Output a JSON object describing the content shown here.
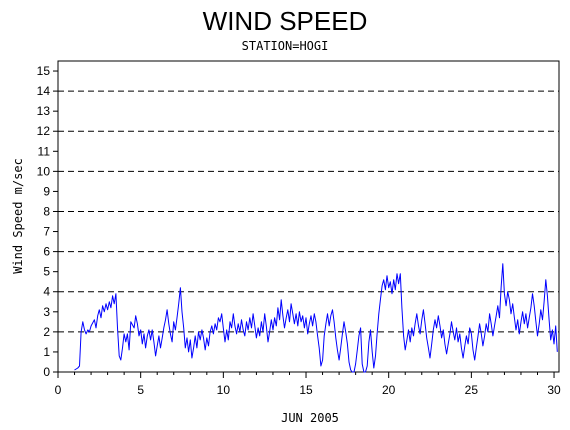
{
  "chart_data": {
    "type": "line",
    "title": "WIND SPEED",
    "subtitle": "STATION=HOGI",
    "xlabel": "JUN 2005",
    "ylabel": "Wind Speed m/sec",
    "xlim": [
      0,
      30.3
    ],
    "ylim": [
      0,
      15.5
    ],
    "x_ticks": [
      0,
      5,
      10,
      15,
      20,
      25,
      30
    ],
    "y_ticks": [
      0,
      1,
      2,
      3,
      4,
      5,
      6,
      7,
      8,
      9,
      10,
      11,
      12,
      13,
      14,
      15
    ],
    "grid_y": [
      2,
      4,
      6,
      8,
      10,
      12,
      14
    ],
    "grid_style": "dashed horizontal",
    "series": [
      {
        "color": "#0000ff",
        "points": [
          [
            1.0,
            0.1
          ],
          [
            1.2,
            0.2
          ],
          [
            1.3,
            0.3
          ],
          [
            1.4,
            2.0
          ],
          [
            1.5,
            2.5
          ],
          [
            1.6,
            2.1
          ],
          [
            1.7,
            1.9
          ],
          [
            1.8,
            2.1
          ],
          [
            1.9,
            2.0
          ],
          [
            2.0,
            2.3
          ],
          [
            2.2,
            2.6
          ],
          [
            2.3,
            2.2
          ],
          [
            2.4,
            2.8
          ],
          [
            2.5,
            3.1
          ],
          [
            2.6,
            2.7
          ],
          [
            2.7,
            3.3
          ],
          [
            2.8,
            3.0
          ],
          [
            2.9,
            3.4
          ],
          [
            3.0,
            3.1
          ],
          [
            3.1,
            3.5
          ],
          [
            3.2,
            3.2
          ],
          [
            3.3,
            3.8
          ],
          [
            3.4,
            3.4
          ],
          [
            3.5,
            3.9
          ],
          [
            3.6,
            2.2
          ],
          [
            3.7,
            0.8
          ],
          [
            3.8,
            0.6
          ],
          [
            3.9,
            1.2
          ],
          [
            4.0,
            1.9
          ],
          [
            4.1,
            1.5
          ],
          [
            4.2,
            1.9
          ],
          [
            4.3,
            1.1
          ],
          [
            4.4,
            2.5
          ],
          [
            4.6,
            2.2
          ],
          [
            4.7,
            2.8
          ],
          [
            4.8,
            2.4
          ],
          [
            4.9,
            1.8
          ],
          [
            5.0,
            2.1
          ],
          [
            5.1,
            1.4
          ],
          [
            5.2,
            1.9
          ],
          [
            5.3,
            1.2
          ],
          [
            5.4,
            1.8
          ],
          [
            5.5,
            2.1
          ],
          [
            5.6,
            1.6
          ],
          [
            5.7,
            2.1
          ],
          [
            5.8,
            1.5
          ],
          [
            5.9,
            0.8
          ],
          [
            6.0,
            1.3
          ],
          [
            6.1,
            1.8
          ],
          [
            6.2,
            1.2
          ],
          [
            6.3,
            1.7
          ],
          [
            6.4,
            2.2
          ],
          [
            6.5,
            2.6
          ],
          [
            6.6,
            3.1
          ],
          [
            6.7,
            2.4
          ],
          [
            6.8,
            1.9
          ],
          [
            6.9,
            1.5
          ],
          [
            7.0,
            2.5
          ],
          [
            7.1,
            2.1
          ],
          [
            7.2,
            2.7
          ],
          [
            7.3,
            3.4
          ],
          [
            7.4,
            4.2
          ],
          [
            7.5,
            3.0
          ],
          [
            7.6,
            2.2
          ],
          [
            7.7,
            1.2
          ],
          [
            7.8,
            1.7
          ],
          [
            7.9,
            1.0
          ],
          [
            8.0,
            1.6
          ],
          [
            8.1,
            0.7
          ],
          [
            8.2,
            1.2
          ],
          [
            8.3,
            1.8
          ],
          [
            8.4,
            1.2
          ],
          [
            8.5,
            2.0
          ],
          [
            8.6,
            1.6
          ],
          [
            8.7,
            2.1
          ],
          [
            8.8,
            1.7
          ],
          [
            8.9,
            1.1
          ],
          [
            9.0,
            1.7
          ],
          [
            9.1,
            1.3
          ],
          [
            9.2,
            2.0
          ],
          [
            9.3,
            2.3
          ],
          [
            9.4,
            1.9
          ],
          [
            9.5,
            2.4
          ],
          [
            9.6,
            2.1
          ],
          [
            9.7,
            2.7
          ],
          [
            9.8,
            2.5
          ],
          [
            9.9,
            2.9
          ],
          [
            10.0,
            2.2
          ],
          [
            10.1,
            1.5
          ],
          [
            10.2,
            2.1
          ],
          [
            10.3,
            1.6
          ],
          [
            10.4,
            2.5
          ],
          [
            10.5,
            2.2
          ],
          [
            10.6,
            2.9
          ],
          [
            10.7,
            2.3
          ],
          [
            10.8,
            1.9
          ],
          [
            10.9,
            2.4
          ],
          [
            11.0,
            2.0
          ],
          [
            11.1,
            2.6
          ],
          [
            11.2,
            2.1
          ],
          [
            11.3,
            1.8
          ],
          [
            11.4,
            2.5
          ],
          [
            11.5,
            2.1
          ],
          [
            11.6,
            2.7
          ],
          [
            11.7,
            2.2
          ],
          [
            11.8,
            2.9
          ],
          [
            11.9,
            2.3
          ],
          [
            12.0,
            1.7
          ],
          [
            12.1,
            2.2
          ],
          [
            12.2,
            1.8
          ],
          [
            12.3,
            2.5
          ],
          [
            12.4,
            2.0
          ],
          [
            12.5,
            2.9
          ],
          [
            12.6,
            2.3
          ],
          [
            12.7,
            1.5
          ],
          [
            12.8,
            2.0
          ],
          [
            12.9,
            2.6
          ],
          [
            13.0,
            2.1
          ],
          [
            13.1,
            2.7
          ],
          [
            13.2,
            2.3
          ],
          [
            13.3,
            3.2
          ],
          [
            13.4,
            2.6
          ],
          [
            13.5,
            3.6
          ],
          [
            13.6,
            2.8
          ],
          [
            13.7,
            2.2
          ],
          [
            13.8,
            2.7
          ],
          [
            13.9,
            3.1
          ],
          [
            14.0,
            2.5
          ],
          [
            14.1,
            3.4
          ],
          [
            14.2,
            2.9
          ],
          [
            14.3,
            2.4
          ],
          [
            14.4,
            2.9
          ],
          [
            14.5,
            2.3
          ],
          [
            14.6,
            3.0
          ],
          [
            14.7,
            2.5
          ],
          [
            14.8,
            2.8
          ],
          [
            14.9,
            2.2
          ],
          [
            15.0,
            2.7
          ],
          [
            15.1,
            1.9
          ],
          [
            15.2,
            2.4
          ],
          [
            15.3,
            2.8
          ],
          [
            15.4,
            2.3
          ],
          [
            15.5,
            2.9
          ],
          [
            15.6,
            2.5
          ],
          [
            15.7,
            1.8
          ],
          [
            15.8,
            1.2
          ],
          [
            15.9,
            0.3
          ],
          [
            16.0,
            0.6
          ],
          [
            16.1,
            1.8
          ],
          [
            16.2,
            2.4
          ],
          [
            16.3,
            2.9
          ],
          [
            16.4,
            2.3
          ],
          [
            16.5,
            2.8
          ],
          [
            16.6,
            3.1
          ],
          [
            16.7,
            2.5
          ],
          [
            16.8,
            1.7
          ],
          [
            16.9,
            1.1
          ],
          [
            17.0,
            0.6
          ],
          [
            17.1,
            1.2
          ],
          [
            17.2,
            1.9
          ],
          [
            17.3,
            2.5
          ],
          [
            17.4,
            2.0
          ],
          [
            17.5,
            1.4
          ],
          [
            17.6,
            0.5
          ],
          [
            17.7,
            0.1
          ],
          [
            17.8,
            0.0
          ],
          [
            17.9,
            0.0
          ],
          [
            18.0,
            0.4
          ],
          [
            18.1,
            1.1
          ],
          [
            18.2,
            1.8
          ],
          [
            18.3,
            2.2
          ],
          [
            18.4,
            0.4
          ],
          [
            18.5,
            0.0
          ],
          [
            18.6,
            0.0
          ],
          [
            18.7,
            0.3
          ],
          [
            18.8,
            1.5
          ],
          [
            18.9,
            2.1
          ],
          [
            19.0,
            1.0
          ],
          [
            19.1,
            0.2
          ],
          [
            19.2,
            0.8
          ],
          [
            19.3,
            1.9
          ],
          [
            19.4,
            2.9
          ],
          [
            19.5,
            3.6
          ],
          [
            19.6,
            4.3
          ],
          [
            19.7,
            4.6
          ],
          [
            19.8,
            4.1
          ],
          [
            19.9,
            4.8
          ],
          [
            20.0,
            4.2
          ],
          [
            20.1,
            4.5
          ],
          [
            20.2,
            3.9
          ],
          [
            20.3,
            4.6
          ],
          [
            20.4,
            4.1
          ],
          [
            20.5,
            4.9
          ],
          [
            20.6,
            4.4
          ],
          [
            20.7,
            4.9
          ],
          [
            20.8,
            3.2
          ],
          [
            20.9,
            1.8
          ],
          [
            21.0,
            1.1
          ],
          [
            21.1,
            1.6
          ],
          [
            21.2,
            2.1
          ],
          [
            21.3,
            1.5
          ],
          [
            21.4,
            2.2
          ],
          [
            21.5,
            1.8
          ],
          [
            21.6,
            2.4
          ],
          [
            21.7,
            2.9
          ],
          [
            21.8,
            2.3
          ],
          [
            21.9,
            1.9
          ],
          [
            22.0,
            2.6
          ],
          [
            22.1,
            3.1
          ],
          [
            22.2,
            2.4
          ],
          [
            22.3,
            1.7
          ],
          [
            22.4,
            1.2
          ],
          [
            22.5,
            0.7
          ],
          [
            22.6,
            1.4
          ],
          [
            22.7,
            2.1
          ],
          [
            22.8,
            2.6
          ],
          [
            22.9,
            2.2
          ],
          [
            23.0,
            2.8
          ],
          [
            23.1,
            2.3
          ],
          [
            23.2,
            1.7
          ],
          [
            23.3,
            2.1
          ],
          [
            23.4,
            1.4
          ],
          [
            23.5,
            0.9
          ],
          [
            23.6,
            1.4
          ],
          [
            23.7,
            1.9
          ],
          [
            23.8,
            2.5
          ],
          [
            23.9,
            2.0
          ],
          [
            24.0,
            1.6
          ],
          [
            24.1,
            2.2
          ],
          [
            24.2,
            1.5
          ],
          [
            24.3,
            1.9
          ],
          [
            24.4,
            1.2
          ],
          [
            24.5,
            0.7
          ],
          [
            24.6,
            1.3
          ],
          [
            24.7,
            1.8
          ],
          [
            24.8,
            1.4
          ],
          [
            24.9,
            2.2
          ],
          [
            25.0,
            1.9
          ],
          [
            25.1,
            1.1
          ],
          [
            25.2,
            0.6
          ],
          [
            25.3,
            1.2
          ],
          [
            25.4,
            1.8
          ],
          [
            25.5,
            2.4
          ],
          [
            25.6,
            1.9
          ],
          [
            25.7,
            1.3
          ],
          [
            25.8,
            1.8
          ],
          [
            25.9,
            2.4
          ],
          [
            26.0,
            2.0
          ],
          [
            26.1,
            2.9
          ],
          [
            26.2,
            2.4
          ],
          [
            26.3,
            1.8
          ],
          [
            26.4,
            2.3
          ],
          [
            26.5,
            2.8
          ],
          [
            26.6,
            3.3
          ],
          [
            26.7,
            2.7
          ],
          [
            26.8,
            4.2
          ],
          [
            26.9,
            5.4
          ],
          [
            27.0,
            3.9
          ],
          [
            27.1,
            3.3
          ],
          [
            27.2,
            4.0
          ],
          [
            27.3,
            3.6
          ],
          [
            27.4,
            2.9
          ],
          [
            27.5,
            3.4
          ],
          [
            27.6,
            2.7
          ],
          [
            27.7,
            2.1
          ],
          [
            27.8,
            2.6
          ],
          [
            27.9,
            1.9
          ],
          [
            28.0,
            2.5
          ],
          [
            28.1,
            3.0
          ],
          [
            28.2,
            2.4
          ],
          [
            28.3,
            2.9
          ],
          [
            28.4,
            2.2
          ],
          [
            28.5,
            2.7
          ],
          [
            28.6,
            3.2
          ],
          [
            28.7,
            3.9
          ],
          [
            28.8,
            3.3
          ],
          [
            28.9,
            2.5
          ],
          [
            29.0,
            1.8
          ],
          [
            29.1,
            2.4
          ],
          [
            29.2,
            3.1
          ],
          [
            29.3,
            2.6
          ],
          [
            29.4,
            3.5
          ],
          [
            29.5,
            4.6
          ],
          [
            29.6,
            3.8
          ],
          [
            29.7,
            2.6
          ],
          [
            29.8,
            1.6
          ],
          [
            29.9,
            2.1
          ],
          [
            30.0,
            1.4
          ],
          [
            30.1,
            2.3
          ],
          [
            30.2,
            1.0
          ]
        ]
      }
    ]
  }
}
